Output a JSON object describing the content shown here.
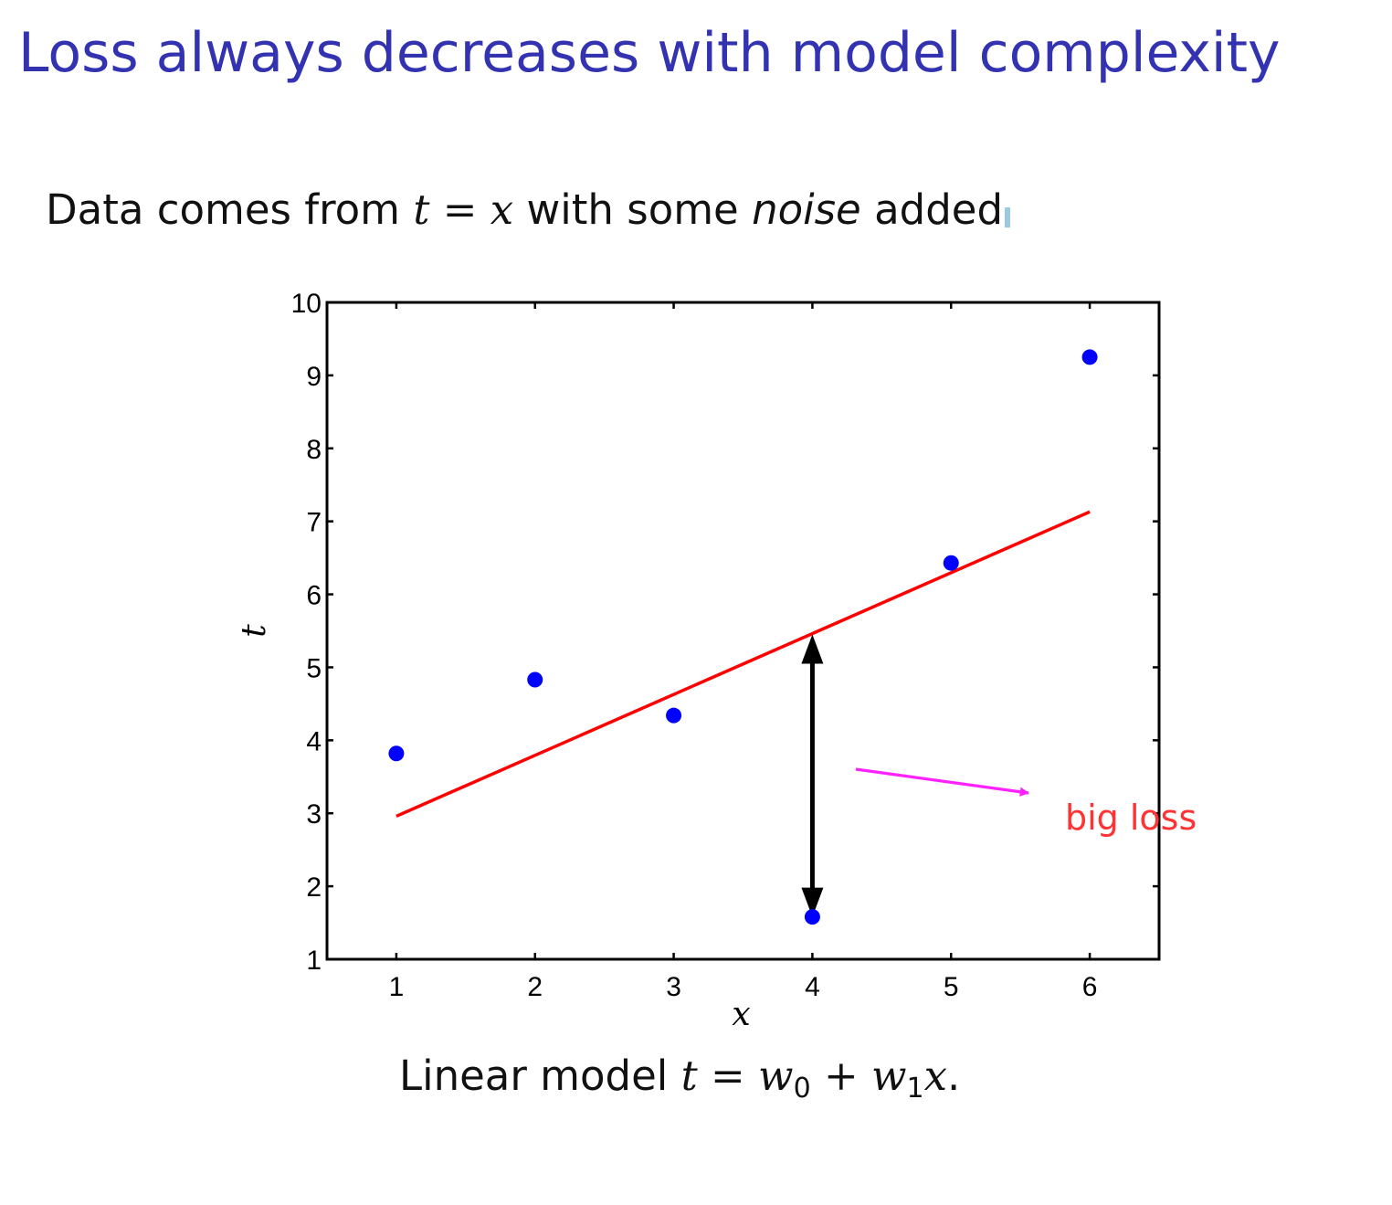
{
  "slide": {
    "title": "Loss always decreases with model complexity",
    "intro": {
      "before": "Data comes from",
      "lhs": "t",
      "eq": "=",
      "rhs": "x",
      "middle": "with some",
      "emphasis": "noise",
      "after": "added"
    },
    "caption": {
      "prefix": "Linear model",
      "lhs": "t",
      "eq": "=",
      "w0": "w",
      "w0_sub": "0",
      "plus": "+",
      "w1": "w",
      "w1_sub": "1",
      "x": "x",
      "end": "."
    }
  },
  "colors": {
    "title": "#3333b2",
    "points": "#0000ff",
    "fit_line": "#ff0000",
    "loss_arrow": "#000000",
    "pointer_arrow": "#ff22ff",
    "annotation_text": "#ff3333"
  },
  "chart_data": {
    "type": "scatter",
    "xlabel": "x",
    "ylabel": "t",
    "xlim": [
      0.5,
      6.5
    ],
    "ylim": [
      1,
      10
    ],
    "xticks": [
      1,
      2,
      3,
      4,
      5,
      6
    ],
    "yticks": [
      1,
      2,
      3,
      4,
      5,
      6,
      7,
      8,
      9,
      10
    ],
    "grid": false,
    "points": {
      "x": [
        1,
        2,
        3,
        4,
        5,
        6
      ],
      "y": [
        3.82,
        4.83,
        4.34,
        1.58,
        6.43,
        9.25
      ]
    },
    "fit_line": {
      "x": [
        1,
        6
      ],
      "y": [
        2.96,
        7.13
      ]
    },
    "loss_arrow": {
      "x": 4,
      "from_y": 1.58,
      "to_y": 5.45
    },
    "annotation": {
      "text": "big loss"
    }
  }
}
